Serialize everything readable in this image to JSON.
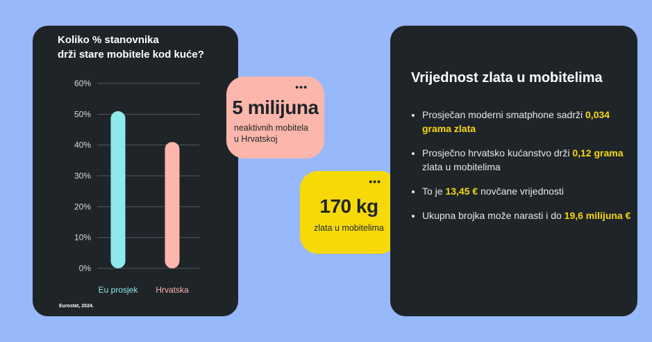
{
  "chart_data": {
    "type": "bar",
    "title": "Koliko % stanovnika drži stare mobitele kod kuće?",
    "title_lines": [
      "Koliko % stanovnika",
      "drži stare mobitele kod kuće?"
    ],
    "categories": [
      "Eu prosjek",
      "Hrvatska"
    ],
    "values": [
      51,
      41
    ],
    "colors": [
      "#8ee9ea",
      "#fdb6ab"
    ],
    "ylim": [
      0,
      60
    ],
    "yticks": [
      "0%",
      "10%",
      "20%",
      "30%",
      "40%",
      "50%",
      "60%"
    ],
    "grid": true,
    "source": "Eurostat, 2024."
  },
  "bubble_pink": {
    "headline": "5 milijuna",
    "text_lines": [
      "neaktivnih mobitela",
      "u Hrvatskoj"
    ],
    "icon": "more-dots-icon",
    "color": "#fdb6ab"
  },
  "bubble_yellow": {
    "headline": "170 kg",
    "text": "zlata u mobitelima",
    "icon": "more-dots-icon",
    "color": "#f7da05"
  },
  "right_panel": {
    "title": "Vrijednost zlata u mobitelima",
    "highlight_color": "#f7da05",
    "items": [
      {
        "pre": "Prosječan moderni smatphone sadrži ",
        "hl": "0,034 grama zlata",
        "post": ""
      },
      {
        "pre": "Prosječno hrvatsko kućanstvo drži ",
        "hl": "0,12 grama",
        "post": " zlata u mobitelima"
      },
      {
        "pre": "To je ",
        "hl": "13,45 €",
        "post": " novčane vrijednosti"
      },
      {
        "pre": "Ukupna brojka može narasti i do ",
        "hl": "19,6 milijuna €",
        "post": ""
      }
    ]
  }
}
